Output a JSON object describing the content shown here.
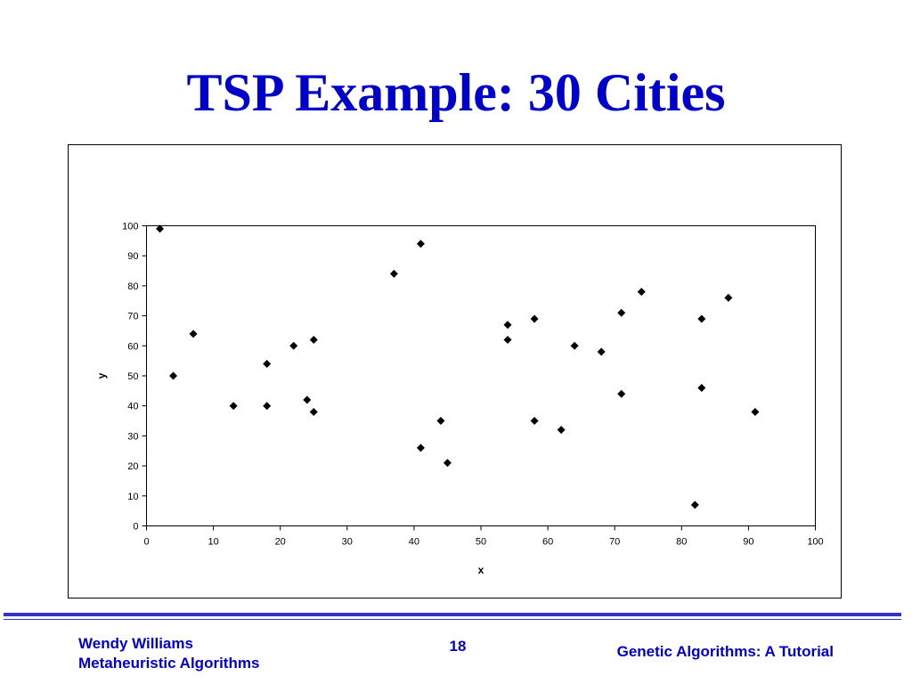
{
  "slide": {
    "title": "TSP Example: 30 Cities",
    "page_number": "18"
  },
  "footer": {
    "author": "Wendy Williams",
    "subtitle": "Metaheuristic Algorithms",
    "course": "Genetic Algorithms: A Tutorial"
  },
  "colors": {
    "title": "#0000cc",
    "rule": "#3333cc",
    "marker": "#000000"
  },
  "chart_data": {
    "type": "scatter",
    "title": "",
    "xlabel": "x",
    "ylabel": "y",
    "xlim": [
      0,
      100
    ],
    "ylim": [
      0,
      100
    ],
    "xticks": [
      0,
      10,
      20,
      30,
      40,
      50,
      60,
      70,
      80,
      90,
      100
    ],
    "yticks": [
      0,
      10,
      20,
      30,
      40,
      50,
      60,
      70,
      80,
      90,
      100
    ],
    "grid": false,
    "legend": "none",
    "marker": "diamond",
    "points": [
      {
        "x": 2,
        "y": 99
      },
      {
        "x": 4,
        "y": 50
      },
      {
        "x": 7,
        "y": 64
      },
      {
        "x": 13,
        "y": 40
      },
      {
        "x": 18,
        "y": 54
      },
      {
        "x": 18,
        "y": 40
      },
      {
        "x": 22,
        "y": 60
      },
      {
        "x": 24,
        "y": 42
      },
      {
        "x": 25,
        "y": 62
      },
      {
        "x": 25,
        "y": 38
      },
      {
        "x": 37,
        "y": 84
      },
      {
        "x": 41,
        "y": 94
      },
      {
        "x": 41,
        "y": 26
      },
      {
        "x": 44,
        "y": 35
      },
      {
        "x": 45,
        "y": 21
      },
      {
        "x": 54,
        "y": 67
      },
      {
        "x": 54,
        "y": 62
      },
      {
        "x": 58,
        "y": 69
      },
      {
        "x": 58,
        "y": 35
      },
      {
        "x": 62,
        "y": 32
      },
      {
        "x": 64,
        "y": 60
      },
      {
        "x": 68,
        "y": 58
      },
      {
        "x": 71,
        "y": 71
      },
      {
        "x": 71,
        "y": 44
      },
      {
        "x": 74,
        "y": 78
      },
      {
        "x": 82,
        "y": 7
      },
      {
        "x": 83,
        "y": 69
      },
      {
        "x": 83,
        "y": 46
      },
      {
        "x": 87,
        "y": 76
      },
      {
        "x": 91,
        "y": 38
      }
    ]
  }
}
